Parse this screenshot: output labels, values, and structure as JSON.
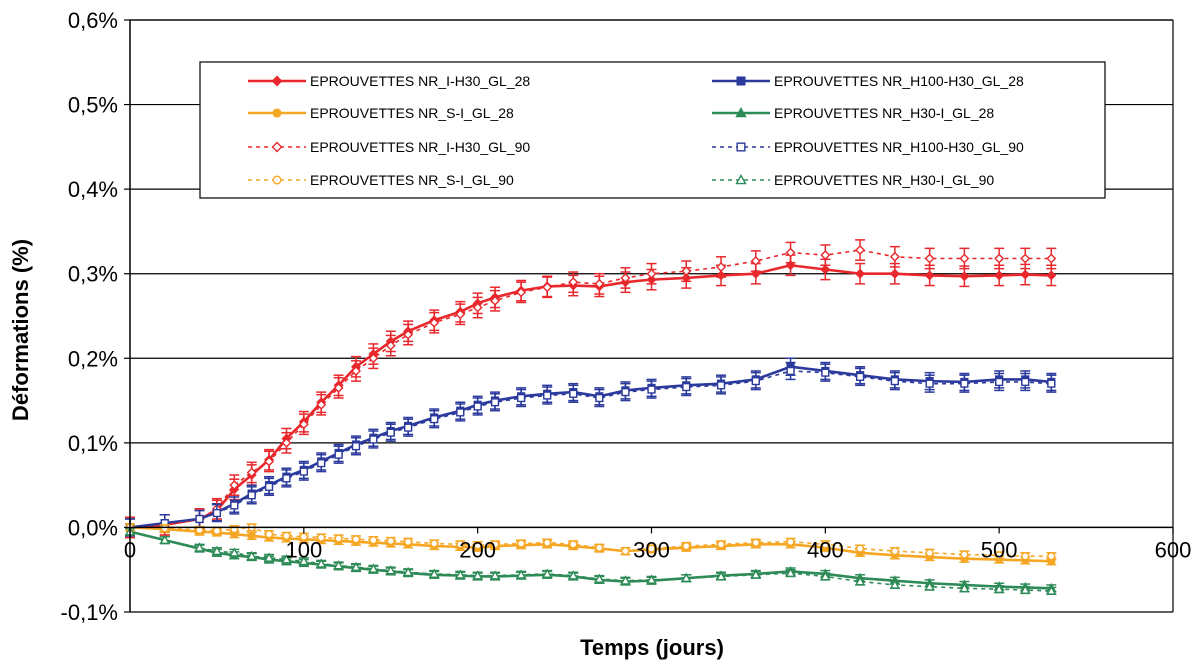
{
  "chart_data": {
    "type": "line",
    "title": "",
    "xlabel": "Temps (jours)",
    "ylabel": "Déformations (%)",
    "xlim": [
      0,
      600
    ],
    "ylim": [
      -0.1,
      0.6
    ],
    "x_ticks": [
      0,
      100,
      200,
      300,
      400,
      500,
      600
    ],
    "y_ticks": [
      -0.1,
      0.0,
      0.1,
      0.2,
      0.3,
      0.4,
      0.5,
      0.6
    ],
    "x_tick_labels": [
      "0",
      "100",
      "200",
      "300",
      "400",
      "500",
      "600"
    ],
    "y_tick_labels": [
      "-0,1%",
      "0,0%",
      "0,1%",
      "0,2%",
      "0,3%",
      "0,4%",
      "0,5%",
      "0,6%"
    ],
    "grid": "horizontal",
    "legend_position": "top",
    "x": [
      0,
      20,
      40,
      50,
      60,
      70,
      80,
      90,
      100,
      110,
      120,
      130,
      140,
      150,
      160,
      175,
      190,
      200,
      210,
      225,
      240,
      255,
      270,
      285,
      300,
      320,
      340,
      360,
      380,
      400,
      420,
      440,
      460,
      480,
      500,
      515,
      530
    ],
    "series": [
      {
        "name": "EPROUVETTES NR_I-H30_GL_28",
        "color": "#e8282c",
        "marker": "diamond",
        "filled": true,
        "dashed": false,
        "values": [
          0,
          0.003,
          0.01,
          0.02,
          0.045,
          0.062,
          0.08,
          0.105,
          0.125,
          0.148,
          0.168,
          0.19,
          0.205,
          0.22,
          0.232,
          0.245,
          0.255,
          0.265,
          0.272,
          0.28,
          0.285,
          0.286,
          0.285,
          0.29,
          0.293,
          0.295,
          0.298,
          0.3,
          0.31,
          0.305,
          0.3,
          0.3,
          0.298,
          0.297,
          0.298,
          0.299,
          0.298
        ],
        "error": 0.012
      },
      {
        "name": "EPROUVETTES NR_H100-H30_GL_28",
        "color": "#2b3a9c",
        "marker": "square",
        "filled": true,
        "dashed": false,
        "values": [
          0,
          0.005,
          0.01,
          0.018,
          0.028,
          0.04,
          0.05,
          0.06,
          0.068,
          0.078,
          0.088,
          0.098,
          0.106,
          0.114,
          0.12,
          0.13,
          0.138,
          0.145,
          0.15,
          0.155,
          0.158,
          0.16,
          0.155,
          0.162,
          0.165,
          0.168,
          0.17,
          0.175,
          0.19,
          0.185,
          0.18,
          0.175,
          0.173,
          0.172,
          0.175,
          0.175,
          0.172
        ],
        "error": 0.01
      },
      {
        "name": "EPROUVETTES NR_S-I_GL_28",
        "color": "#f5a623",
        "marker": "circle",
        "filled": true,
        "dashed": false,
        "values": [
          0,
          -0.002,
          -0.005,
          -0.006,
          -0.008,
          -0.01,
          -0.012,
          -0.013,
          -0.014,
          -0.015,
          -0.016,
          -0.017,
          -0.018,
          -0.019,
          -0.02,
          -0.022,
          -0.023,
          -0.024,
          -0.022,
          -0.021,
          -0.02,
          -0.022,
          -0.025,
          -0.028,
          -0.026,
          -0.024,
          -0.022,
          -0.02,
          -0.02,
          -0.024,
          -0.03,
          -0.033,
          -0.035,
          -0.037,
          -0.038,
          -0.039,
          -0.04
        ],
        "error": 0.004
      },
      {
        "name": "EPROUVETTES NR_H30-I_GL_28",
        "color": "#2e8b57",
        "marker": "triangle",
        "filled": true,
        "dashed": false,
        "values": [
          -0.005,
          -0.015,
          -0.025,
          -0.03,
          -0.033,
          -0.035,
          -0.038,
          -0.04,
          -0.042,
          -0.044,
          -0.046,
          -0.048,
          -0.05,
          -0.052,
          -0.054,
          -0.056,
          -0.057,
          -0.058,
          -0.058,
          -0.057,
          -0.056,
          -0.058,
          -0.062,
          -0.064,
          -0.063,
          -0.06,
          -0.057,
          -0.055,
          -0.052,
          -0.055,
          -0.06,
          -0.063,
          -0.066,
          -0.068,
          -0.07,
          -0.071,
          -0.072
        ],
        "error": 0.004
      },
      {
        "name": "EPROUVETTES NR_I-H30_GL_90",
        "color": "#e8282c",
        "marker": "diamond",
        "filled": false,
        "dashed": true,
        "values": [
          0,
          0.003,
          0.01,
          0.022,
          0.05,
          0.065,
          0.078,
          0.1,
          0.122,
          0.145,
          0.165,
          0.185,
          0.2,
          0.215,
          0.228,
          0.242,
          0.252,
          0.26,
          0.268,
          0.278,
          0.284,
          0.29,
          0.288,
          0.295,
          0.3,
          0.303,
          0.308,
          0.315,
          0.325,
          0.322,
          0.328,
          0.32,
          0.318,
          0.318,
          0.318,
          0.318,
          0.318
        ],
        "error": 0.012
      },
      {
        "name": "EPROUVETTES NR_H100-H30_GL_90",
        "color": "#2b3a9c",
        "marker": "square",
        "filled": false,
        "dashed": true,
        "values": [
          0,
          0.005,
          0.01,
          0.017,
          0.026,
          0.038,
          0.048,
          0.058,
          0.066,
          0.076,
          0.086,
          0.096,
          0.104,
          0.112,
          0.118,
          0.128,
          0.136,
          0.143,
          0.148,
          0.153,
          0.156,
          0.158,
          0.153,
          0.16,
          0.163,
          0.166,
          0.168,
          0.173,
          0.185,
          0.183,
          0.178,
          0.173,
          0.17,
          0.17,
          0.172,
          0.172,
          0.17
        ],
        "error": 0.01
      },
      {
        "name": "EPROUVETTES NR_S-I_GL_90",
        "color": "#f5a623",
        "marker": "circle",
        "filled": false,
        "dashed": true,
        "values": [
          0,
          -0.001,
          -0.003,
          -0.004,
          -0.002,
          0.0,
          -0.008,
          -0.01,
          -0.011,
          -0.012,
          -0.013,
          -0.014,
          -0.015,
          -0.016,
          -0.017,
          -0.019,
          -0.02,
          -0.021,
          -0.02,
          -0.019,
          -0.018,
          -0.02,
          -0.024,
          -0.028,
          -0.025,
          -0.022,
          -0.02,
          -0.018,
          -0.017,
          -0.02,
          -0.025,
          -0.028,
          -0.03,
          -0.032,
          -0.033,
          -0.034,
          -0.034
        ],
        "error": 0.004
      },
      {
        "name": "EPROUVETTES NR_H30-I_GL_90",
        "color": "#2e8b57",
        "marker": "triangle",
        "filled": false,
        "dashed": true,
        "values": [
          -0.005,
          -0.015,
          -0.024,
          -0.028,
          -0.03,
          -0.034,
          -0.036,
          -0.038,
          -0.04,
          -0.043,
          -0.045,
          -0.047,
          -0.049,
          -0.051,
          -0.053,
          -0.055,
          -0.056,
          -0.057,
          -0.057,
          -0.056,
          -0.055,
          -0.057,
          -0.061,
          -0.063,
          -0.062,
          -0.06,
          -0.058,
          -0.056,
          -0.054,
          -0.058,
          -0.064,
          -0.068,
          -0.07,
          -0.072,
          -0.073,
          -0.074,
          -0.075
        ],
        "error": 0.004
      }
    ],
    "legend_order": [
      0,
      1,
      2,
      3,
      4,
      5,
      6,
      7
    ]
  }
}
